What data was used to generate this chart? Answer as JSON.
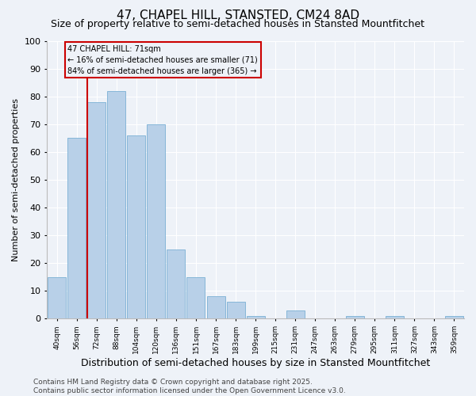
{
  "title": "47, CHAPEL HILL, STANSTED, CM24 8AD",
  "subtitle": "Size of property relative to semi-detached houses in Stansted Mountfitchet",
  "xlabel": "Distribution of semi-detached houses by size in Stansted Mountfitchet",
  "ylabel": "Number of semi-detached properties",
  "categories": [
    "40sqm",
    "56sqm",
    "72sqm",
    "88sqm",
    "104sqm",
    "120sqm",
    "136sqm",
    "151sqm",
    "167sqm",
    "183sqm",
    "199sqm",
    "215sqm",
    "231sqm",
    "247sqm",
    "263sqm",
    "279sqm",
    "295sqm",
    "311sqm",
    "327sqm",
    "343sqm",
    "359sqm"
  ],
  "values": [
    15,
    65,
    78,
    82,
    66,
    70,
    25,
    15,
    8,
    6,
    1,
    0,
    3,
    0,
    0,
    1,
    0,
    1,
    0,
    0,
    1
  ],
  "bar_color": "#b8d0e8",
  "bar_edge_color": "#7aafd4",
  "vline_x_index": 2,
  "vline_color": "#cc0000",
  "annotation_title": "47 CHAPEL HILL: 71sqm",
  "annotation_line1": "← 16% of semi-detached houses are smaller (71)",
  "annotation_line2": "84% of semi-detached houses are larger (365) →",
  "annotation_box_color": "#cc0000",
  "ylim": [
    0,
    100
  ],
  "yticks": [
    0,
    10,
    20,
    30,
    40,
    50,
    60,
    70,
    80,
    90,
    100
  ],
  "footer": "Contains HM Land Registry data © Crown copyright and database right 2025.\nContains public sector information licensed under the Open Government Licence v3.0.",
  "bg_color": "#eef2f8",
  "title_fontsize": 11,
  "subtitle_fontsize": 9,
  "xlabel_fontsize": 9,
  "ylabel_fontsize": 8,
  "footer_fontsize": 6.5
}
